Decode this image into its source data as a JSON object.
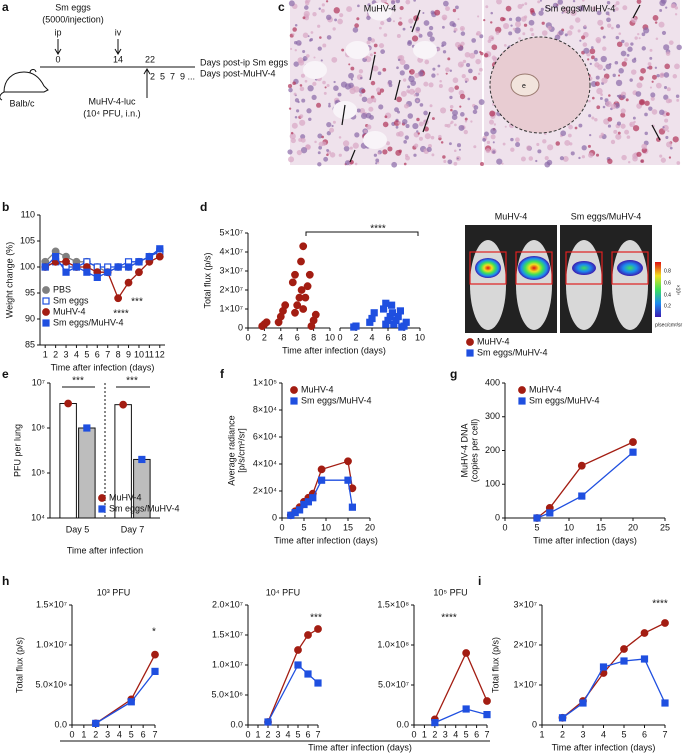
{
  "panel_labels": [
    "a",
    "b",
    "c",
    "d",
    "e",
    "f",
    "g",
    "h",
    "i"
  ],
  "schematic": {
    "injection": "Sm eggs",
    "dose": "(5000/injection)",
    "route_1": "ip",
    "route_2": "iv",
    "timeline": [
      "0",
      "14",
      "22"
    ],
    "days_label_1": "Days post-ip Sm eggs",
    "days_post": "2  5  7  9 ...",
    "days_label_2": "Days post-MuHV-4",
    "mouse": "Balb/c",
    "virus": "MuHV-4-luc",
    "virus_dose": "(10⁴ PFU, i.n.)"
  },
  "histology": {
    "left": "MuHV-4",
    "right": "Sm eggs/MuHV-4",
    "egg": "e"
  },
  "imaging": {
    "left": "MuHV-4",
    "right": "Sm eggs/MuHV-4",
    "scale_ticks": [
      "0.2",
      "0.4",
      "0.6",
      "0.8"
    ],
    "scale_unit": "×10⁸",
    "scale_label": "p/sec/cm²/sr"
  },
  "h_xlabel": "Time after infection (days)",
  "chart_data": [
    {
      "type": "line",
      "xlabel": "Time after infection (days)",
      "ylabel": "Weight change (%)",
      "x": [
        1,
        2,
        3,
        4,
        5,
        6,
        7,
        8,
        9,
        10,
        11,
        12
      ],
      "xlim": [
        0.5,
        12.5
      ],
      "xticks": [
        1,
        2,
        3,
        4,
        5,
        6,
        7,
        8,
        9,
        10,
        11,
        12
      ],
      "ylim": [
        85,
        110
      ],
      "yticks": [
        85,
        90,
        95,
        100,
        105,
        110
      ],
      "legend": "lower left",
      "annotations": [
        "****",
        "***"
      ],
      "series": [
        {
          "name": "PBS",
          "color": "#808080",
          "marker": "circle",
          "values": [
            101,
            103,
            102,
            101,
            101,
            100,
            99,
            100,
            100,
            101,
            102,
            103
          ]
        },
        {
          "name": "Sm eggs",
          "color": "#1f4fe0",
          "marker": "square",
          "open": true,
          "values": [
            100,
            101,
            100,
            100,
            101,
            100,
            100,
            100,
            101,
            101,
            102,
            103
          ]
        },
        {
          "name": "MuHV-4",
          "color": "#a31d12",
          "marker": "circle",
          "values": [
            100,
            101,
            101,
            100,
            100,
            99,
            99,
            94,
            97,
            99,
            101,
            102
          ]
        },
        {
          "name": "Sm eggs/MuHV-4",
          "color": "#1f4fe0",
          "marker": "square",
          "values": [
            100,
            102,
            99,
            100,
            99,
            98,
            99,
            100,
            100,
            101,
            102,
            103.5
          ]
        }
      ]
    },
    {
      "type": "scatter",
      "xlabel": "Time after infection (days)",
      "ylabel": "Total flux (p/s)",
      "xlim": [
        0,
        10
      ],
      "xticks": [
        0,
        2,
        4,
        6,
        8,
        10
      ],
      "ylim": [
        0,
        50000000
      ],
      "yticks": [
        0,
        {
          "value": 10000000,
          "label": "1×10⁷"
        },
        {
          "value": 20000000,
          "label": "2×10⁷"
        },
        {
          "value": 30000000,
          "label": "3×10⁷"
        },
        {
          "value": 40000000,
          "label": "4×10⁷"
        },
        {
          "value": 50000000,
          "label": "5×10⁷"
        }
      ],
      "legend": "outside",
      "annotations": [
        "****"
      ],
      "series": [
        {
          "name": "MuHV-4",
          "color": "#a31d12",
          "marker": "circle",
          "x": [
            2,
            2,
            2,
            4,
            4,
            4,
            4,
            6,
            6,
            6,
            6,
            6,
            6,
            7,
            7,
            7,
            7,
            7,
            7,
            8,
            8,
            8
          ],
          "values": [
            1000000,
            2000000,
            3000000,
            3000000,
            6000000,
            9000000,
            12000000,
            8000000,
            12000000,
            16000000,
            20000000,
            24000000,
            28000000,
            10000000,
            16000000,
            22000000,
            28000000,
            35000000,
            43000000,
            1000000,
            4000000,
            7000000
          ]
        },
        {
          "name": "Sm eggs/MuHV-4",
          "color": "#1f4fe0",
          "marker": "square",
          "x": [
            2,
            2,
            4,
            4,
            4,
            6,
            6,
            6,
            6,
            6,
            6,
            7,
            7,
            7,
            7,
            7,
            8,
            8,
            8
          ],
          "values": [
            500000,
            1000000,
            3000000,
            5000000,
            8000000,
            2000000,
            4000000,
            6000000,
            8000000,
            10000000,
            13000000,
            2000000,
            4000000,
            6000000,
            9000000,
            12000000,
            500000,
            1000000,
            3000000
          ]
        }
      ]
    },
    {
      "type": "bar",
      "log": true,
      "xlabel": "Time after infection",
      "ylabel": "PFU per lung",
      "categories": [
        "Day 5",
        "Day 7"
      ],
      "ylim": [
        10000,
        10000000
      ],
      "yticks": [
        {
          "value": 10000,
          "label": "10⁴"
        },
        {
          "value": 100000,
          "label": "10⁵"
        },
        {
          "value": 1000000,
          "label": "10⁶"
        },
        {
          "value": 10000000,
          "label": "10⁷"
        }
      ],
      "legend": "lower right",
      "annotations": [
        "***",
        "***"
      ],
      "series": [
        {
          "name": "MuHV-4",
          "color": "#a31d12",
          "bar_fill": "#ffffff",
          "marker": "circle",
          "values": [
            3500000,
            3300000
          ]
        },
        {
          "name": "Sm eggs/MuHV-4",
          "color": "#1f4fe0",
          "bar_fill": "#bdbdbd",
          "marker": "square",
          "values": [
            1000000,
            200000
          ]
        }
      ]
    },
    {
      "type": "line",
      "xlabel": "Time after infection (days)",
      "ylabel": "Average radiance",
      "ylabel_2": "[p/s/cm²/sr]",
      "x": [
        2,
        3,
        4,
        5,
        6,
        7,
        9,
        15,
        16
      ],
      "xlim": [
        0,
        20
      ],
      "xticks": [
        0,
        5,
        10,
        15,
        20
      ],
      "ylim": [
        0,
        100000
      ],
      "yticks": [
        0,
        {
          "value": 20000,
          "label": "2×10⁴"
        },
        {
          "value": 40000,
          "label": "4×10⁴"
        },
        {
          "value": 60000,
          "label": "6×10⁴"
        },
        {
          "value": 80000,
          "label": "8×10⁴"
        },
        {
          "value": 100000,
          "label": "1×10⁵"
        }
      ],
      "legend": "upper left",
      "series": [
        {
          "name": "MuHV-4",
          "color": "#a31d12",
          "marker": "circle",
          "values": [
            2000,
            5000,
            8000,
            12000,
            15000,
            18000,
            36000,
            42000,
            22000
          ]
        },
        {
          "name": "Sm eggs/MuHV-4",
          "color": "#1f4fe0",
          "marker": "square",
          "values": [
            2000,
            4000,
            6000,
            10000,
            12000,
            15000,
            28000,
            28000,
            8000
          ]
        }
      ]
    },
    {
      "type": "line",
      "xlabel": "Time after infection (days)",
      "ylabel": "MuHV-4 DNA",
      "ylabel_2": "(copies per cell)",
      "x": [
        5,
        7,
        12,
        20
      ],
      "xlim": [
        0,
        25
      ],
      "xticks": [
        0,
        5,
        10,
        15,
        20,
        25
      ],
      "ylim": [
        0,
        400
      ],
      "yticks": [
        0,
        100,
        200,
        300,
        400
      ],
      "legend": "upper left",
      "series": [
        {
          "name": "MuHV-4",
          "color": "#a31d12",
          "marker": "circle",
          "values": [
            0,
            30,
            155,
            225
          ]
        },
        {
          "name": "Sm eggs/MuHV-4",
          "color": "#1f4fe0",
          "marker": "square",
          "values": [
            0,
            15,
            65,
            195
          ]
        }
      ]
    },
    {
      "type": "line",
      "title": "10³ PFU",
      "ylabel": "Total flux (p/s)",
      "x": [
        2,
        5,
        7
      ],
      "xlim": [
        0,
        7
      ],
      "xticks": [
        0,
        1,
        2,
        3,
        4,
        5,
        6,
        7
      ],
      "ylim": [
        0,
        15000000
      ],
      "yticks": [
        {
          "value": 0,
          "label": "0.0"
        },
        {
          "value": 5000000,
          "label": "5.0×10⁶"
        },
        {
          "value": 10000000,
          "label": "1.0×10⁷"
        },
        {
          "value": 15000000,
          "label": "1.5×10⁷"
        }
      ],
      "annotations": [
        "*"
      ],
      "series": [
        {
          "color": "#a31d12",
          "marker": "circle",
          "values": [
            200000,
            3200000,
            8800000
          ]
        },
        {
          "color": "#1f4fe0",
          "marker": "square",
          "values": [
            200000,
            2900000,
            6700000
          ]
        }
      ]
    },
    {
      "type": "line",
      "title": "10⁴ PFU",
      "x": [
        2,
        5,
        6,
        7
      ],
      "xlim": [
        0,
        7
      ],
      "xticks": [
        0,
        1,
        2,
        3,
        4,
        5,
        6,
        7
      ],
      "ylim": [
        0,
        20000000
      ],
      "yticks": [
        {
          "value": 0,
          "label": "0.0"
        },
        {
          "value": 5000000,
          "label": "5.0×10⁶"
        },
        {
          "value": 10000000,
          "label": "1.0×10⁷"
        },
        {
          "value": 15000000,
          "label": "1.5×10⁷"
        },
        {
          "value": 20000000,
          "label": "2.0×10⁷"
        }
      ],
      "annotations": [
        "***"
      ],
      "series": [
        {
          "color": "#a31d12",
          "marker": "circle",
          "values": [
            500000,
            12500000,
            15000000,
            16000000
          ]
        },
        {
          "color": "#1f4fe0",
          "marker": "square",
          "values": [
            500000,
            10000000,
            8500000,
            7000000
          ]
        }
      ]
    },
    {
      "type": "line",
      "title": "10⁵ PFU",
      "x": [
        2,
        5,
        7
      ],
      "xlim": [
        0,
        7
      ],
      "xticks": [
        0,
        1,
        2,
        3,
        4,
        5,
        6,
        7
      ],
      "ylim": [
        0,
        150000000
      ],
      "yticks": [
        {
          "value": 0,
          "label": "0.0"
        },
        {
          "value": 50000000,
          "label": "5.0×10⁷"
        },
        {
          "value": 100000000,
          "label": "1.0×10⁸"
        },
        {
          "value": 150000000,
          "label": "1.5×10⁸"
        }
      ],
      "annotations": [
        "****"
      ],
      "series": [
        {
          "color": "#a31d12",
          "marker": "circle",
          "values": [
            7000000,
            90000000,
            30000000
          ]
        },
        {
          "color": "#1f4fe0",
          "marker": "square",
          "values": [
            3000000,
            20000000,
            13000000
          ]
        }
      ]
    },
    {
      "type": "line",
      "xlabel": "Time after infection (days)",
      "ylabel": "Total flux (p/s)",
      "x": [
        2,
        3,
        4,
        5,
        6,
        7
      ],
      "xlim": [
        1,
        7
      ],
      "xticks": [
        1,
        2,
        3,
        4,
        5,
        6,
        7
      ],
      "ylim": [
        0,
        30000000
      ],
      "yticks": [
        0,
        {
          "value": 10000000,
          "label": "1×10⁷"
        },
        {
          "value": 20000000,
          "label": "2×10⁷"
        },
        {
          "value": 30000000,
          "label": "3×10⁷"
        }
      ],
      "annotations": [
        "****"
      ],
      "series": [
        {
          "color": "#a31d12",
          "marker": "circle",
          "values": [
            1800000,
            6000000,
            13000000,
            19000000,
            23000000,
            25500000
          ]
        },
        {
          "color": "#1f4fe0",
          "marker": "square",
          "values": [
            1800000,
            5500000,
            14500000,
            16000000,
            16500000,
            5500000
          ]
        }
      ]
    }
  ]
}
